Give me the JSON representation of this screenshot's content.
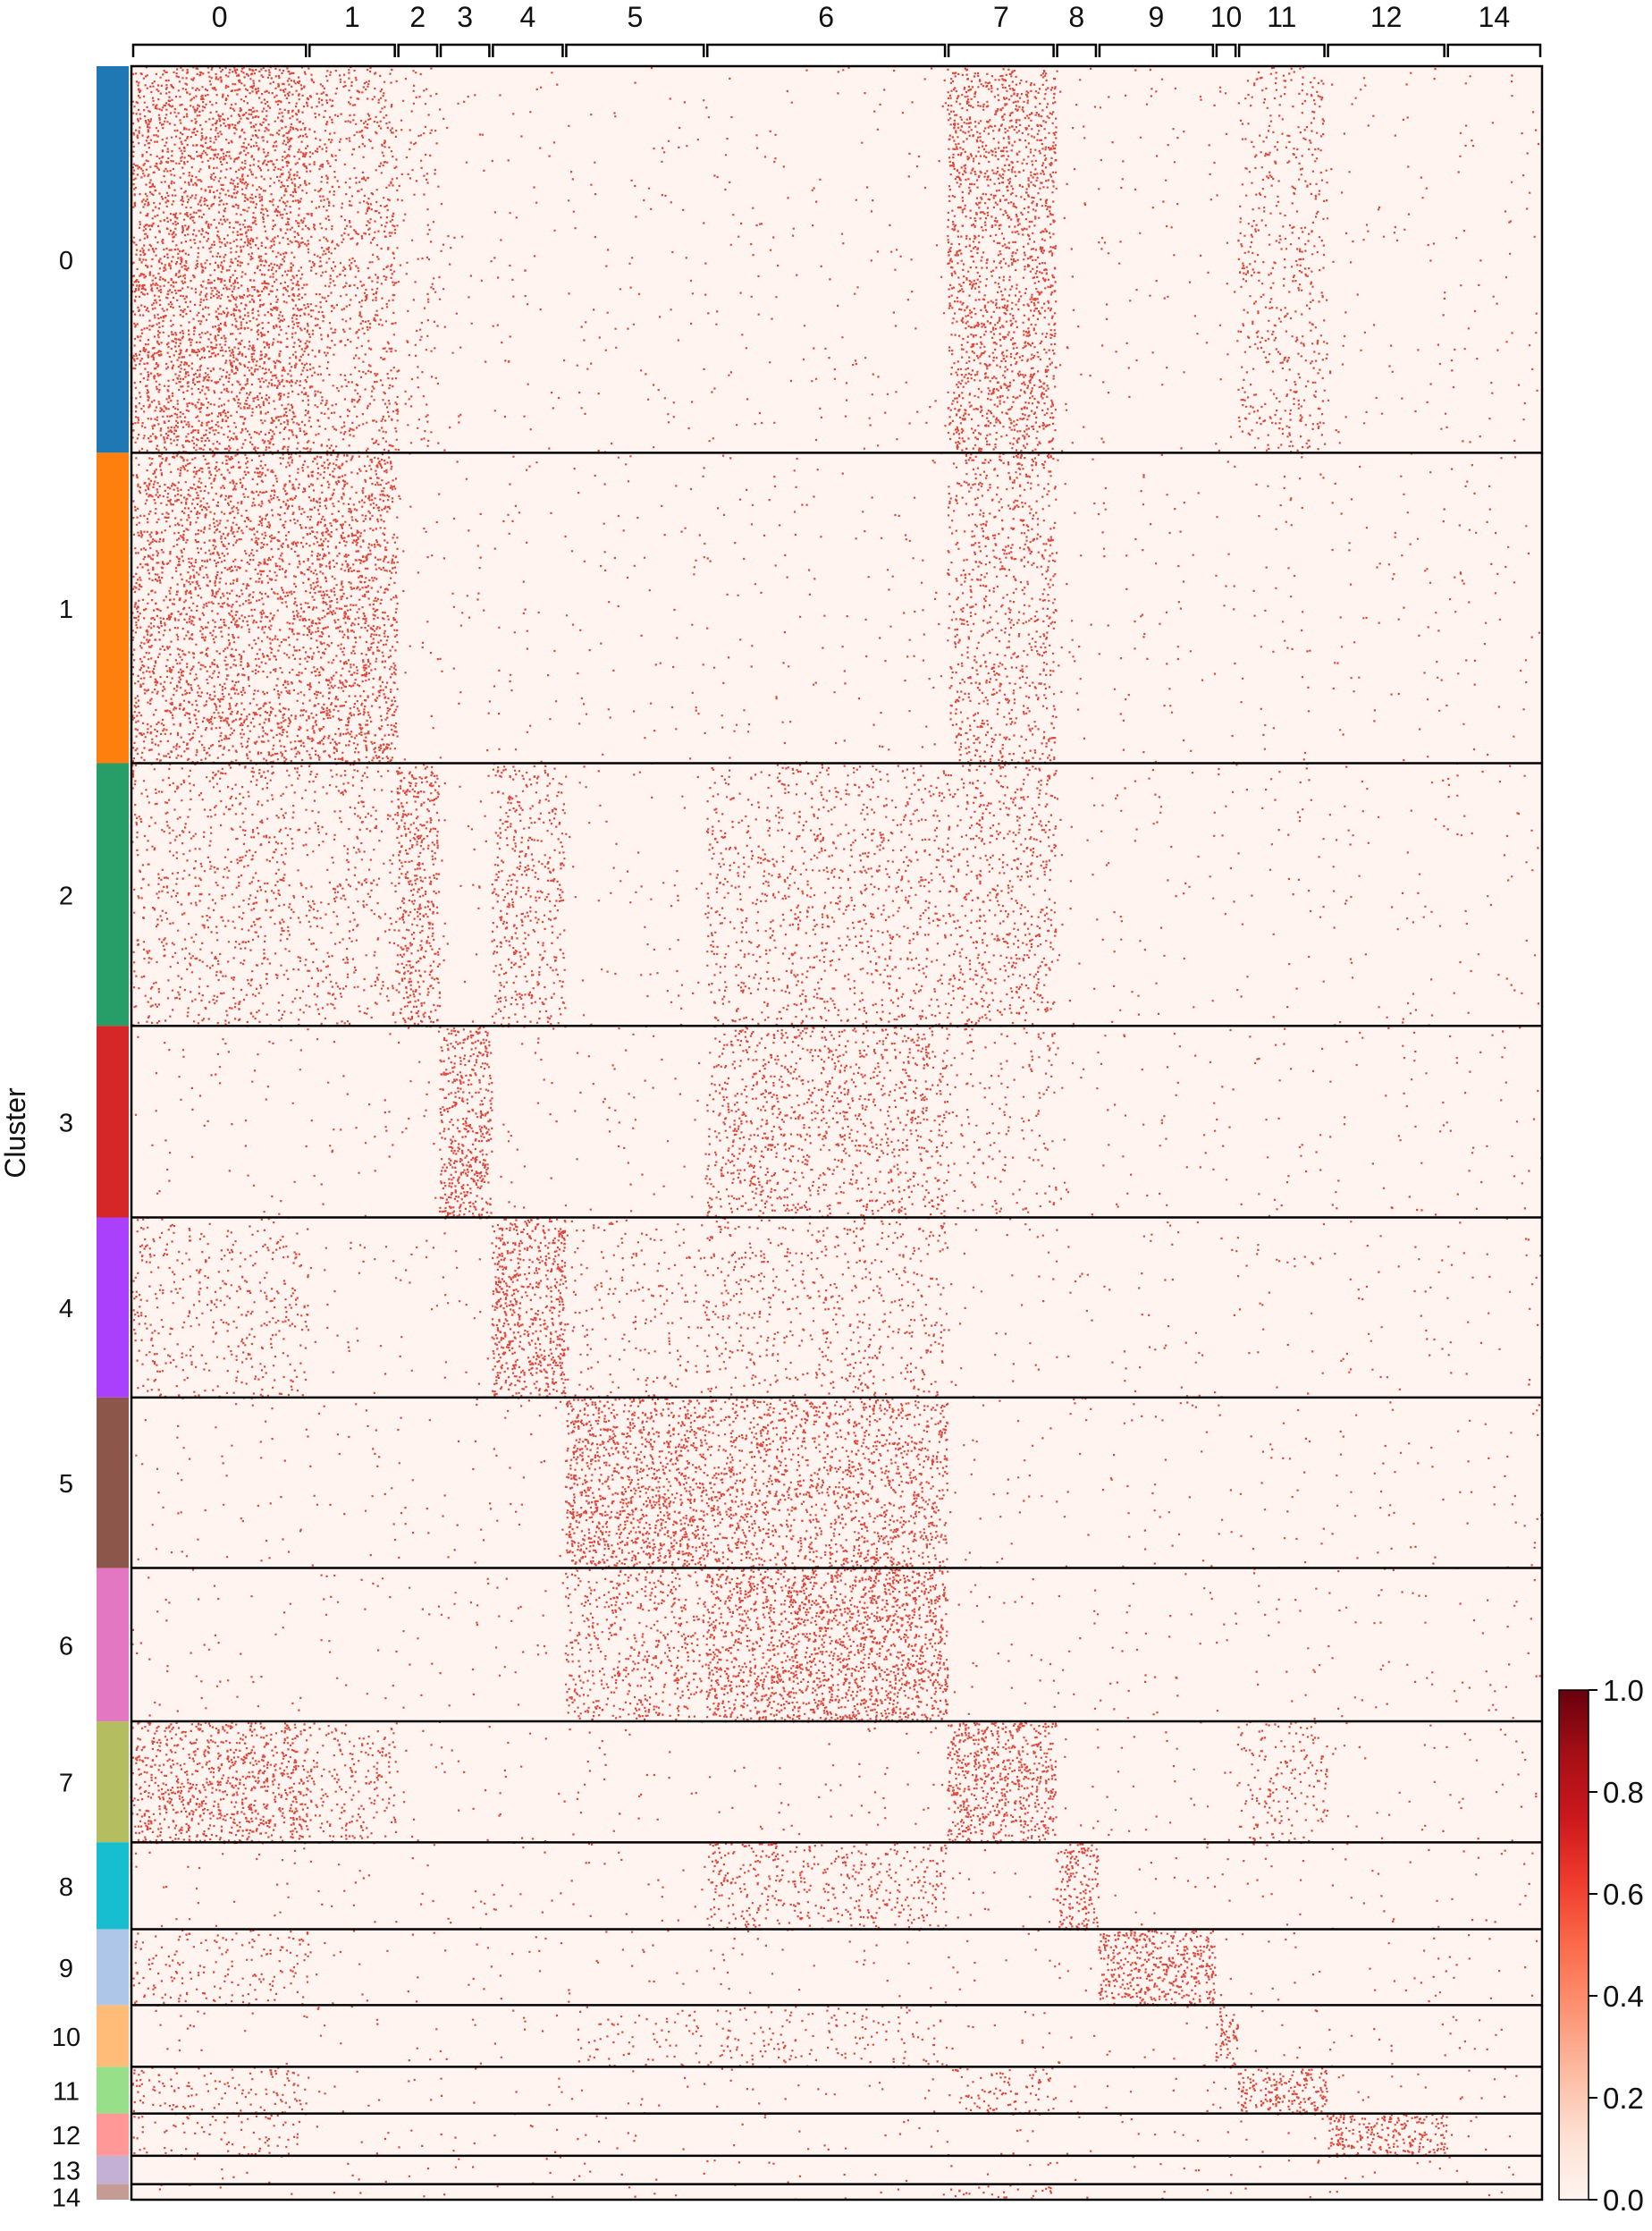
{
  "chart_data": {
    "type": "heatmap",
    "title": "",
    "ylabel": "Cluster",
    "xlabel": "",
    "gene_groups": [
      {
        "label": "0",
        "start": 0,
        "end": 12.5
      },
      {
        "label": "1",
        "start": 12.5,
        "end": 18.8
      },
      {
        "label": "2",
        "start": 18.8,
        "end": 21.8
      },
      {
        "label": "3",
        "start": 21.8,
        "end": 25.5
      },
      {
        "label": "4",
        "start": 25.5,
        "end": 30.7
      },
      {
        "label": "5",
        "start": 30.7,
        "end": 40.7
      },
      {
        "label": "6",
        "start": 40.7,
        "end": 57.8
      },
      {
        "label": "7",
        "start": 57.8,
        "end": 65.5
      },
      {
        "label": "8",
        "start": 65.5,
        "end": 68.5
      },
      {
        "label": "9",
        "start": 68.5,
        "end": 76.8
      },
      {
        "label": "10",
        "start": 76.8,
        "end": 78.4
      },
      {
        "label": "11",
        "start": 78.4,
        "end": 84.7
      },
      {
        "label": "12",
        "start": 84.7,
        "end": 93.2
      },
      {
        "label": "14",
        "start": 93.2,
        "end": 100
      }
    ],
    "clusters": [
      {
        "label": "0",
        "color": "#1f77b4",
        "fraction": 0.1812
      },
      {
        "label": "1",
        "color": "#ff7f0e",
        "fraction": 0.1455
      },
      {
        "label": "2",
        "color": "#279e68",
        "fraction": 0.1231
      },
      {
        "label": "3",
        "color": "#d62728",
        "fraction": 0.0898
      },
      {
        "label": "4",
        "color": "#aa40fc",
        "fraction": 0.0844
      },
      {
        "label": "5",
        "color": "#8c564b",
        "fraction": 0.0799
      },
      {
        "label": "6",
        "color": "#e377c2",
        "fraction": 0.0719
      },
      {
        "label": "7",
        "color": "#b5bd61",
        "fraction": 0.0567
      },
      {
        "label": "8",
        "color": "#17becf",
        "fraction": 0.0407
      },
      {
        "label": "9",
        "color": "#aec7e8",
        "fraction": 0.0356
      },
      {
        "label": "10",
        "color": "#ffbb78",
        "fraction": 0.0289
      },
      {
        "label": "11",
        "color": "#98df8a",
        "fraction": 0.0219
      },
      {
        "label": "12",
        "color": "#ff9896",
        "fraction": 0.0198
      },
      {
        "label": "13",
        "color": "#c5b0d5",
        "fraction": 0.0133
      },
      {
        "label": "14",
        "color": "#c49c94",
        "fraction": 0.0073
      }
    ],
    "enrichment": [
      {
        "cluster": "0",
        "groups": {
          "0": 0.85,
          "1": 0.45,
          "2": 0.15,
          "7": 0.75,
          "11": 0.3
        }
      },
      {
        "cluster": "1",
        "groups": {
          "0": 0.7,
          "1": 0.8,
          "7": 0.45
        }
      },
      {
        "cluster": "2",
        "groups": {
          "0": 0.3,
          "1": 0.25,
          "2": 0.75,
          "4": 0.45,
          "6": 0.3,
          "7": 0.4
        }
      },
      {
        "cluster": "3",
        "groups": {
          "3": 0.9,
          "6": 0.45,
          "7": 0.15
        }
      },
      {
        "cluster": "4",
        "groups": {
          "0": 0.25,
          "4": 0.9,
          "5": 0.15,
          "6": 0.25
        }
      },
      {
        "cluster": "5",
        "groups": {
          "5": 0.9,
          "6": 0.65
        }
      },
      {
        "cluster": "6",
        "groups": {
          "5": 0.45,
          "6": 0.95
        }
      },
      {
        "cluster": "7",
        "groups": {
          "0": 0.75,
          "1": 0.35,
          "7": 0.9,
          "11": 0.3
        }
      },
      {
        "cluster": "8",
        "groups": {
          "6": 0.4,
          "8": 0.85
        }
      },
      {
        "cluster": "9",
        "groups": {
          "0": 0.25,
          "9": 0.95
        }
      },
      {
        "cluster": "10",
        "groups": {
          "5": 0.15,
          "6": 0.2,
          "10": 0.85
        }
      },
      {
        "cluster": "11",
        "groups": {
          "0": 0.3,
          "7": 0.35,
          "11": 0.9
        }
      },
      {
        "cluster": "12",
        "groups": {
          "0": 0.2,
          "12": 0.9
        }
      },
      {
        "cluster": "13",
        "groups": {}
      },
      {
        "cluster": "14",
        "groups": {
          "7": 0.3
        }
      }
    ],
    "colorbar": {
      "colormap": "Reds",
      "vmin": 0.0,
      "vmax": 1.0,
      "tick_values": [
        0.0,
        0.2,
        0.4,
        0.6,
        0.8,
        1.0
      ],
      "tick_labels": [
        "0.0",
        "0.2",
        "0.4",
        "0.6",
        "0.8",
        "1.0"
      ]
    },
    "colors": {
      "low": "#fff5f0",
      "high": "#67000d",
      "dot": "#d62a1e",
      "background": "#fff4ef"
    }
  }
}
